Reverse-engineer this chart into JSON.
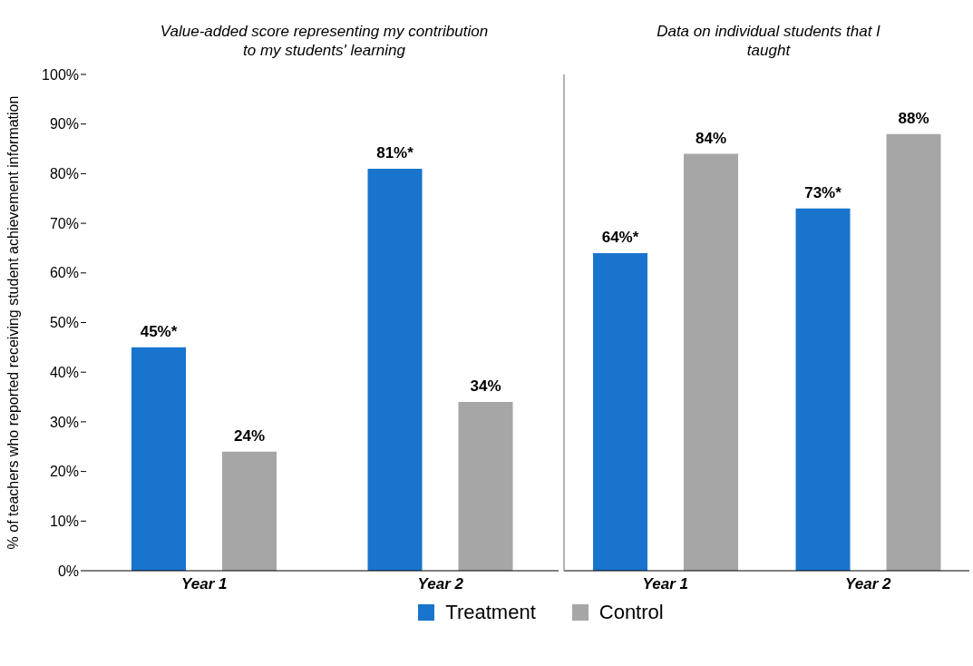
{
  "chart_data": [
    {
      "type": "bar",
      "title": "Value-added score representing my contribution to my students' learning",
      "ylabel": "% of teachers who reported receiving student achievement information",
      "categories": [
        "Year 1",
        "Year 2"
      ],
      "series": [
        {
          "name": "Treatment",
          "color": "#1874cd",
          "values": [
            45,
            81
          ],
          "value_labels": [
            "45%*",
            "81%*"
          ]
        },
        {
          "name": "Control",
          "color": "#a6a6a6",
          "values": [
            24,
            34
          ],
          "value_labels": [
            "24%",
            "34%"
          ]
        }
      ],
      "ylim": [
        0,
        100
      ],
      "yticks": [
        {
          "value": 0,
          "label": "0%"
        },
        {
          "value": 10,
          "label": "10%"
        },
        {
          "value": 20,
          "label": "20%"
        },
        {
          "value": 30,
          "label": "30%"
        },
        {
          "value": 40,
          "label": "40%"
        },
        {
          "value": 50,
          "label": "50%"
        },
        {
          "value": 60,
          "label": "60%"
        },
        {
          "value": 70,
          "label": "70%"
        },
        {
          "value": 80,
          "label": "80%"
        },
        {
          "value": 90,
          "label": "90%"
        },
        {
          "value": 100,
          "label": "100%"
        }
      ],
      "grid": false,
      "legend": "bottom"
    },
    {
      "type": "bar",
      "title": "Data on individual students that I taught",
      "categories": [
        "Year 1",
        "Year 2"
      ],
      "series": [
        {
          "color": "#1874cd",
          "values": [
            64,
            73
          ],
          "value_labels": [
            "64%*",
            "73%*"
          ]
        },
        {
          "color": "#a6a6a6",
          "values": [
            84,
            88
          ],
          "value_labels": [
            "84%",
            "88%"
          ]
        }
      ],
      "ylim": [
        0,
        100
      ],
      "tick_labels": "x",
      "grid": false
    }
  ]
}
